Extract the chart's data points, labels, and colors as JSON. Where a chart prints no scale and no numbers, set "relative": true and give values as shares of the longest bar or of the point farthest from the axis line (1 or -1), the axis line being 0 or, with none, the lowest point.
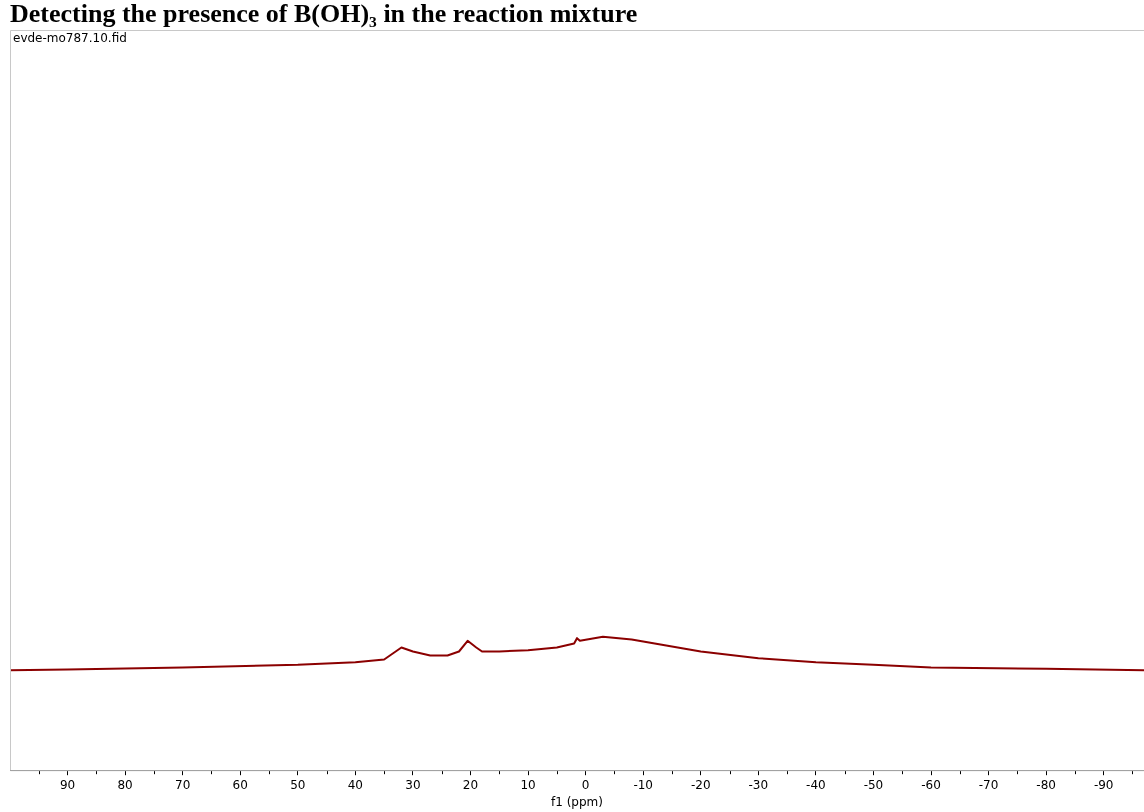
{
  "chart_data": {
    "type": "line",
    "title": "Detecting the presence of B(OH)₃ in the reaction mixture",
    "xlabel": "f1 (ppm)",
    "annotations": [
      "evde-mo787.10.fid"
    ],
    "relative": true,
    "grid": false,
    "legend": false,
    "marker": "none",
    "line_style": "solid",
    "xlim": [
      100,
      -97
    ],
    "xticks": [
      {
        "value": 95,
        "label": null
      },
      90,
      {
        "value": 85,
        "label": null
      },
      80,
      {
        "value": 75,
        "label": null
      },
      70,
      {
        "value": 65,
        "label": null
      },
      60,
      {
        "value": 55,
        "label": null
      },
      50,
      {
        "value": 45,
        "label": null
      },
      40,
      {
        "value": 35,
        "label": null
      },
      30,
      {
        "value": 25,
        "label": null
      },
      20,
      {
        "value": 15,
        "label": null
      },
      10,
      {
        "value": 5,
        "label": null
      },
      0,
      {
        "value": -5,
        "label": null
      },
      -10,
      {
        "value": -15,
        "label": null
      },
      -20,
      {
        "value": -25,
        "label": null
      },
      -30,
      {
        "value": -35,
        "label": null
      },
      -40,
      {
        "value": -45,
        "label": null
      },
      -50,
      {
        "value": -55,
        "label": null
      },
      -60,
      {
        "value": -65,
        "label": null
      },
      -70,
      {
        "value": -75,
        "label": null
      },
      -80,
      {
        "value": -85,
        "label": null
      },
      -90,
      {
        "value": -95,
        "label": null
      }
    ],
    "series": [
      {
        "color": "#8b0000",
        "x": [
          100,
          90,
          70,
          50,
          40,
          35,
          32,
          30,
          27,
          24,
          22,
          20.5,
          19,
          18,
          15,
          10,
          5,
          2,
          1.5,
          1,
          -3,
          -8,
          -12,
          -20,
          -30,
          -40,
          -50,
          -60,
          -80,
          -97
        ],
        "values": [
          0.75,
          0.755,
          0.77,
          0.79,
          0.81,
          0.83,
          0.92,
          0.89,
          0.86,
          0.86,
          0.89,
          0.97,
          0.92,
          0.89,
          0.89,
          0.9,
          0.92,
          0.95,
          0.99,
          0.97,
          1,
          0.98,
          0.95,
          0.89,
          0.84,
          0.81,
          0.79,
          0.77,
          0.76,
          0.75
        ]
      }
    ]
  }
}
